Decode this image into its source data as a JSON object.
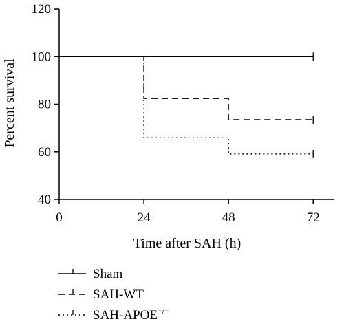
{
  "chart_data": {
    "type": "line",
    "subtype": "kaplan-meier step",
    "xlabel": "Time after SAH (h)",
    "ylabel": "Percent survival",
    "xlim": [
      0,
      78
    ],
    "ylim": [
      40,
      120
    ],
    "xticks": [
      0,
      24,
      48,
      72
    ],
    "yticks": [
      40,
      60,
      80,
      100,
      120
    ],
    "legend_position": "bottom-left",
    "series": [
      {
        "name": "Sham",
        "style": "solid",
        "steps": [
          {
            "x": 0,
            "y": 100
          },
          {
            "x": 72,
            "y": 100
          }
        ],
        "censor": [
          {
            "x": 72,
            "y": 100
          }
        ]
      },
      {
        "name": "SAH-WT",
        "style": "dashed",
        "steps": [
          {
            "x": 0,
            "y": 100
          },
          {
            "x": 24,
            "y": 82.4
          },
          {
            "x": 48,
            "y": 73.5
          },
          {
            "x": 72,
            "y": 73.5
          }
        ],
        "censor": [
          {
            "x": 72,
            "y": 73.5
          }
        ]
      },
      {
        "name": "SAH-APOE",
        "name_sup": "−/−",
        "style": "dotted",
        "steps": [
          {
            "x": 0,
            "y": 100
          },
          {
            "x": 24,
            "y": 65.9
          },
          {
            "x": 48,
            "y": 59.1
          },
          {
            "x": 72,
            "y": 59.1
          }
        ],
        "censor": [
          {
            "x": 72,
            "y": 59.1
          }
        ]
      }
    ]
  }
}
